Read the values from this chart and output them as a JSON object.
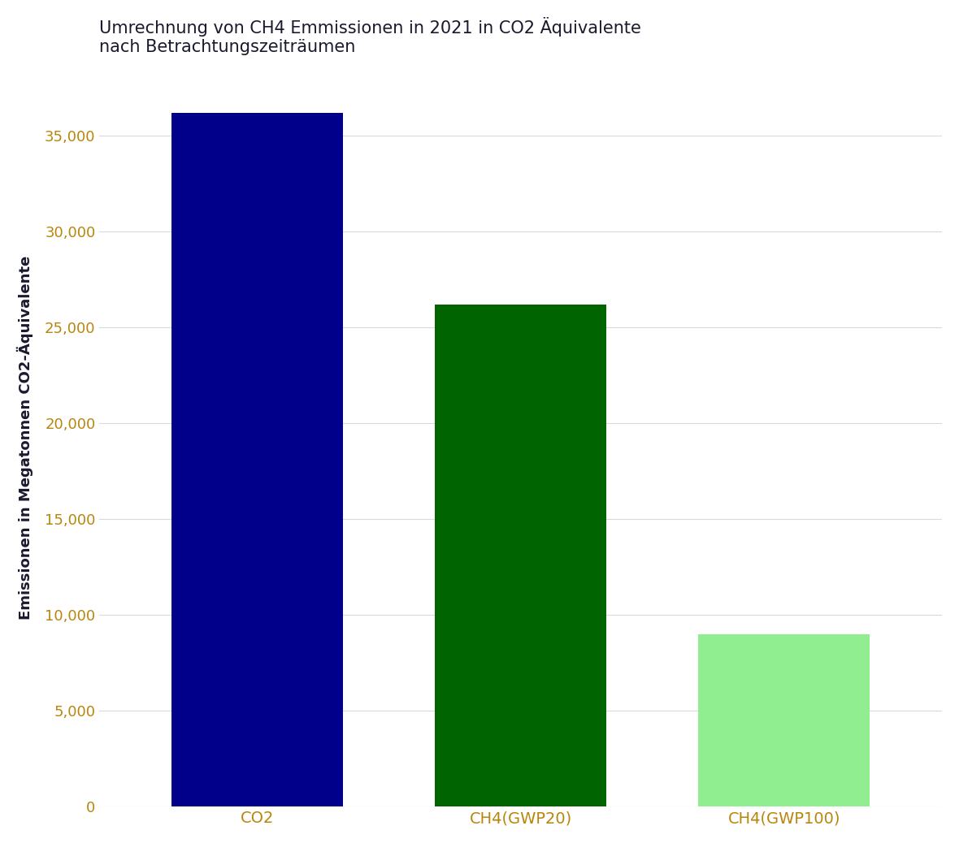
{
  "categories": [
    "CO2",
    "CH4(GWP20)",
    "CH4(GWP100)"
  ],
  "values": [
    36200,
    26200,
    9000
  ],
  "bar_colors": [
    "#00008B",
    "#006400",
    "#90EE90"
  ],
  "title": "Umrechnung von CH4 Emmissionen in 2021 in CO2 Äquivalente\nnach Betrachtungszeiträumen",
  "ylabel": "Emissionen in Megatonnen CO2-Äquivalente",
  "ylim": [
    0,
    38500
  ],
  "yticks": [
    0,
    5000,
    10000,
    15000,
    20000,
    25000,
    30000,
    35000
  ],
  "title_fontsize": 15,
  "ylabel_fontsize": 13,
  "tick_fontsize": 13,
  "xlabel_fontsize": 14,
  "background_color": "#ffffff",
  "grid_color": "#d9d9d9",
  "title_color": "#1a1a2e",
  "tick_color": "#b8860b",
  "ylabel_color": "#1a1a2e",
  "bar_width": 0.65
}
